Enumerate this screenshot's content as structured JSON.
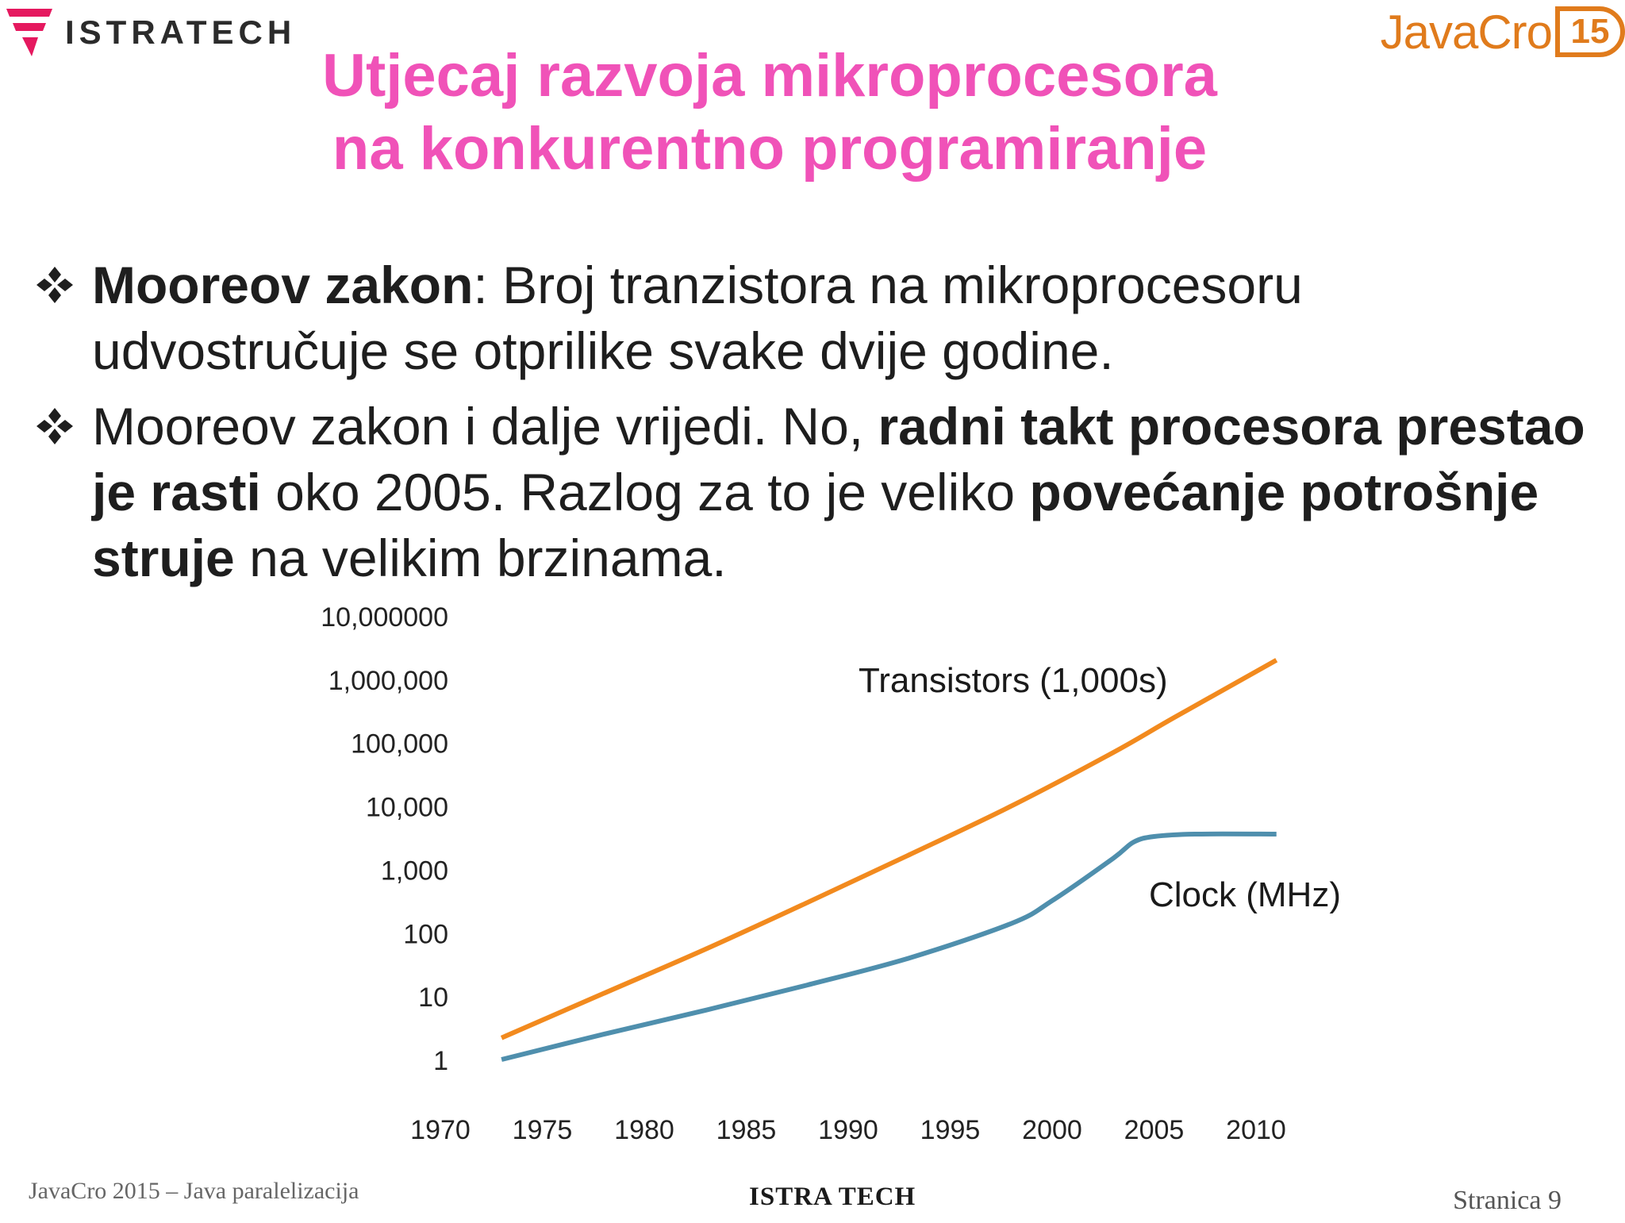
{
  "header": {
    "left_logo_text": "ISTRATECH",
    "right_logo_text": "JavaCro",
    "right_logo_badge": "15"
  },
  "title": {
    "line1": "Utjecaj razvoja mikroprocesora",
    "line2": "na konkurentno programiranje"
  },
  "bullets": [
    {
      "parts": [
        {
          "text": "Mooreov zakon",
          "bold": true
        },
        {
          "text": ": Broj tranzistora na mikroprocesoru udvostručuje se otprilike svake dvije godine.",
          "bold": false
        }
      ]
    },
    {
      "parts": [
        {
          "text": "Mooreov zakon i dalje vrijedi. No, ",
          "bold": false
        },
        {
          "text": "radni takt procesora prestao je rasti",
          "bold": true
        },
        {
          "text": " oko 2005. Razlog za to je veliko ",
          "bold": false
        },
        {
          "text": "povećanje potrošnje struje",
          "bold": true
        },
        {
          "text": " na velikim brzinama.",
          "bold": false
        }
      ]
    }
  ],
  "chart_data": {
    "type": "line",
    "title": "",
    "xlabel": "",
    "ylabel": "",
    "yscale": "log",
    "xlim": [
      1970,
      2012
    ],
    "ylim": [
      1,
      10000000
    ],
    "x_ticks": [
      "1970",
      "1975",
      "1980",
      "1985",
      "1990",
      "1995",
      "2000",
      "2005",
      "2010"
    ],
    "y_ticks": [
      "10,000000",
      "1,000,000",
      "100,000",
      "10,000",
      "1,000",
      "100",
      "10",
      "1"
    ],
    "grid": false,
    "series": [
      {
        "name": "Transistors (1,000s)",
        "color": "#f28a1e",
        "x": [
          1973,
          1978,
          1983,
          1988,
          1993,
          1998,
          2003,
          2006,
          2011
        ],
        "y": [
          2.2,
          11,
          55,
          300,
          1700,
          10000,
          70000,
          250000,
          2000000
        ]
      },
      {
        "name": "Clock (MHz)",
        "color": "#4f8fad",
        "x": [
          1973,
          1978,
          1983,
          1988,
          1993,
          1998,
          2000,
          2003,
          2004,
          2005,
          2007,
          2011
        ],
        "y": [
          1,
          2.5,
          6,
          15,
          40,
          140,
          320,
          1500,
          2700,
          3300,
          3600,
          3600
        ]
      }
    ]
  },
  "footer": {
    "left": "JavaCro 2015 – Java paralelizacija",
    "center": "ISTRA TECH",
    "right": "Stranica 9"
  }
}
